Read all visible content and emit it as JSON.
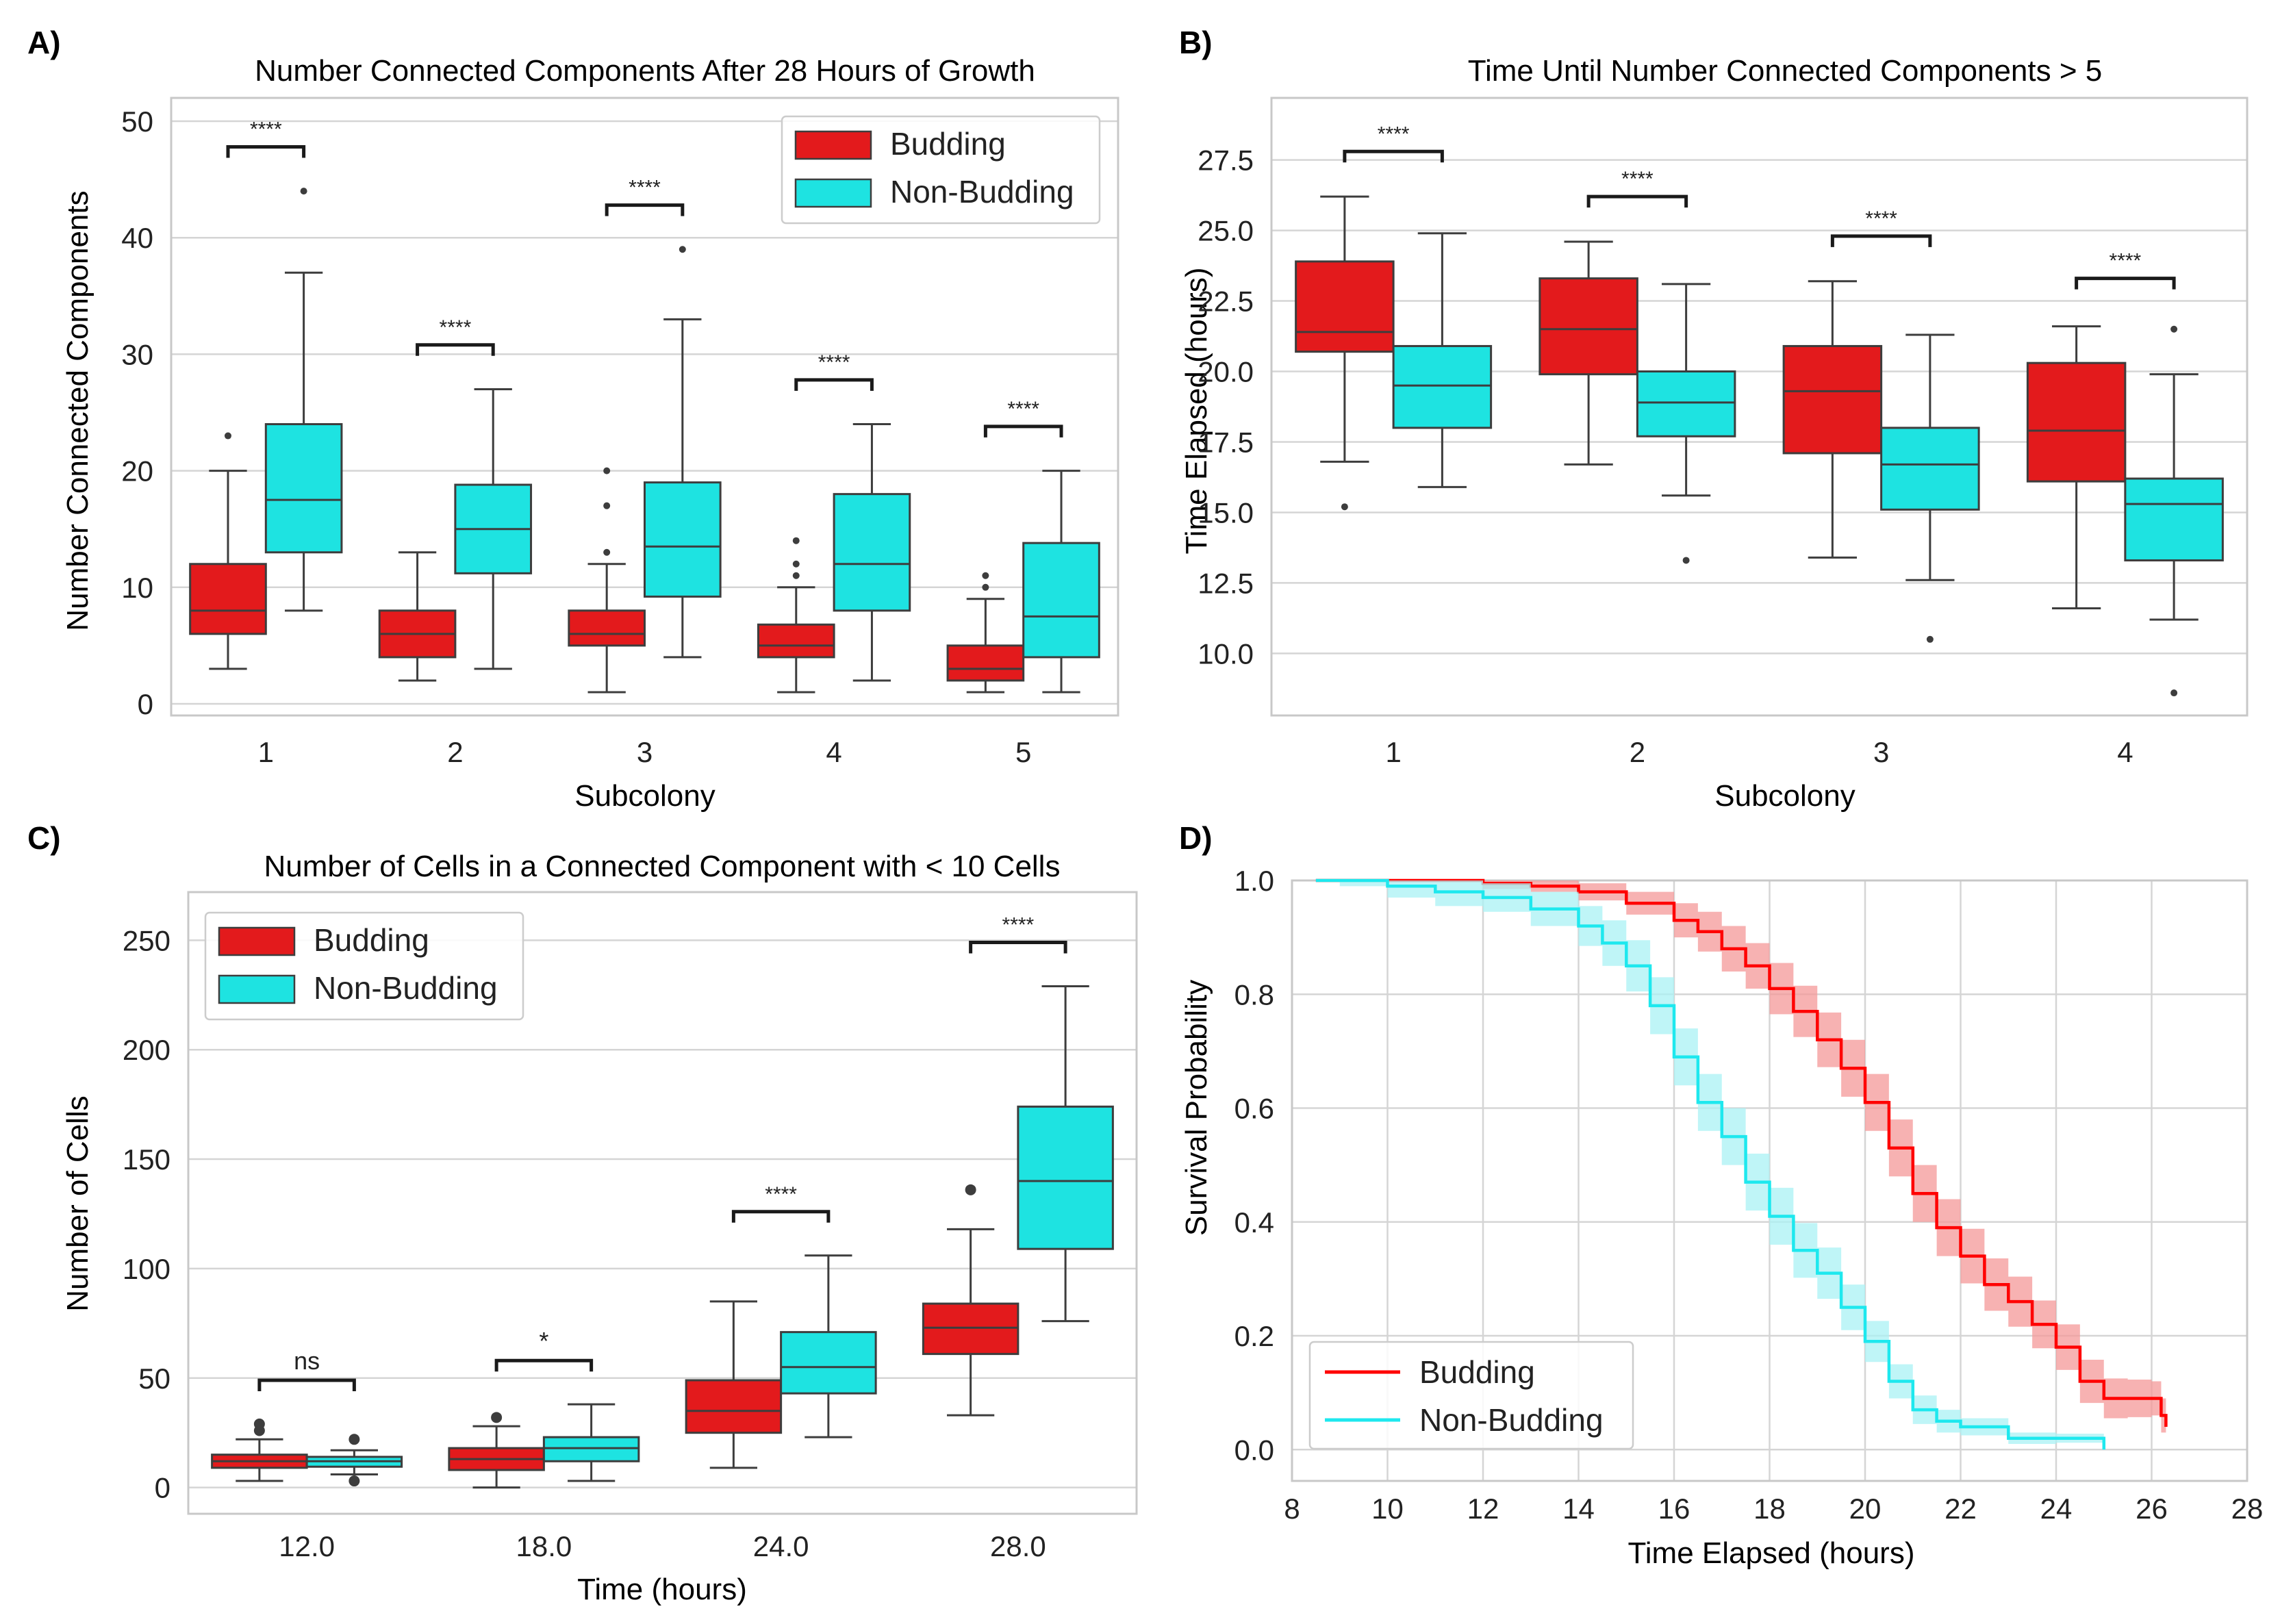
{
  "chart_data": [
    {
      "panel": "A)",
      "type": "boxplot",
      "title": "Number Connected Components After 28 Hours of Growth",
      "xlabel": "Subcolony",
      "ylabel": "Number Connected Components",
      "categories": [
        "1",
        "2",
        "3",
        "4",
        "5"
      ],
      "ylim": [
        -1,
        52
      ],
      "yticks": [
        0,
        10,
        20,
        30,
        40,
        50
      ],
      "legend": "top-right",
      "series": [
        {
          "name": "Budding",
          "color": "#e31a1c",
          "boxes": [
            {
              "whislo": 3,
              "q1": 6,
              "med": 8,
              "q3": 12,
              "whishi": 20,
              "fliers": [
                23
              ]
            },
            {
              "whislo": 2,
              "q1": 4,
              "med": 6,
              "q3": 8,
              "whishi": 13,
              "fliers": []
            },
            {
              "whislo": 1,
              "q1": 5,
              "med": 6,
              "q3": 8,
              "whishi": 12,
              "fliers": [
                13,
                17,
                20
              ]
            },
            {
              "whislo": 1,
              "q1": 4,
              "med": 5,
              "q3": 6.8,
              "whishi": 10,
              "fliers": [
                11,
                12,
                14
              ]
            },
            {
              "whislo": 1,
              "q1": 2,
              "med": 3,
              "q3": 5,
              "whishi": 9,
              "fliers": [
                10,
                11
              ]
            }
          ]
        },
        {
          "name": "Non-Budding",
          "color": "#1ee3e1",
          "boxes": [
            {
              "whislo": 8,
              "q1": 13,
              "med": 17.5,
              "q3": 24,
              "whishi": 37,
              "fliers": [
                44
              ]
            },
            {
              "whislo": 3,
              "q1": 11.2,
              "med": 15,
              "q3": 18.8,
              "whishi": 27,
              "fliers": []
            },
            {
              "whislo": 4,
              "q1": 9.2,
              "med": 13.5,
              "q3": 19,
              "whishi": 33,
              "fliers": [
                39
              ]
            },
            {
              "whislo": 2,
              "q1": 8,
              "med": 12,
              "q3": 18,
              "whishi": 24,
              "fliers": []
            },
            {
              "whislo": 1,
              "q1": 4,
              "med": 7.5,
              "q3": 13.8,
              "whishi": 20,
              "fliers": []
            }
          ]
        }
      ],
      "annotations": [
        {
          "category": "1",
          "text": "****",
          "y": 47.8
        },
        {
          "category": "2",
          "text": "****",
          "y": 30.8
        },
        {
          "category": "3",
          "text": "****",
          "y": 42.8
        },
        {
          "category": "4",
          "text": "****",
          "y": 27.8
        },
        {
          "category": "5",
          "text": "****",
          "y": 23.8
        }
      ]
    },
    {
      "panel": "B)",
      "type": "boxplot",
      "title": "Time Until Number Connected Components > 5",
      "xlabel": "Subcolony",
      "ylabel": "Time Elapsed (hours)",
      "categories": [
        "1",
        "2",
        "3",
        "4"
      ],
      "ylim": [
        7.8,
        29.7
      ],
      "yticks": [
        10.0,
        12.5,
        15.0,
        17.5,
        20.0,
        22.5,
        25.0,
        27.5
      ],
      "ytick_labels": [
        "10.0",
        "12.5",
        "15.0",
        "17.5",
        "20.0",
        "22.5",
        "25.0",
        "27.5"
      ],
      "series": [
        {
          "name": "Budding",
          "color": "#e31a1c",
          "boxes": [
            {
              "whislo": 16.8,
              "q1": 20.7,
              "med": 21.4,
              "q3": 23.9,
              "whishi": 26.2,
              "fliers": [
                15.2
              ]
            },
            {
              "whislo": 16.7,
              "q1": 19.9,
              "med": 21.5,
              "q3": 23.3,
              "whishi": 24.6,
              "fliers": []
            },
            {
              "whislo": 13.4,
              "q1": 17.1,
              "med": 19.3,
              "q3": 20.9,
              "whishi": 23.2,
              "fliers": []
            },
            {
              "whislo": 11.6,
              "q1": 16.1,
              "med": 17.9,
              "q3": 20.3,
              "whishi": 21.6,
              "fliers": []
            }
          ]
        },
        {
          "name": "Non-Budding",
          "color": "#1ee3e1",
          "boxes": [
            {
              "whislo": 15.9,
              "q1": 18.0,
              "med": 19.5,
              "q3": 20.9,
              "whishi": 24.9,
              "fliers": []
            },
            {
              "whislo": 15.6,
              "q1": 17.7,
              "med": 18.9,
              "q3": 20.0,
              "whishi": 23.1,
              "fliers": [
                13.3
              ]
            },
            {
              "whislo": 12.6,
              "q1": 15.1,
              "med": 16.7,
              "q3": 18.0,
              "whishi": 21.3,
              "fliers": [
                10.5
              ]
            },
            {
              "whislo": 11.2,
              "q1": 13.3,
              "med": 15.3,
              "q3": 16.2,
              "whishi": 19.9,
              "fliers": [
                21.5,
                8.6
              ]
            }
          ]
        }
      ],
      "annotations": [
        {
          "category": "1",
          "text": "****",
          "y": 27.8
        },
        {
          "category": "2",
          "text": "****",
          "y": 26.2
        },
        {
          "category": "3",
          "text": "****",
          "y": 24.8
        },
        {
          "category": "4",
          "text": "****",
          "y": 23.3
        }
      ]
    },
    {
      "panel": "C)",
      "type": "boxplot",
      "title": "Number of Cells in a Connected Component with < 10 Cells",
      "xlabel": "Time (hours)",
      "ylabel": "Number of Cells",
      "categories": [
        "12.0",
        "18.0",
        "24.0",
        "28.0"
      ],
      "ylim": [
        -12,
        272
      ],
      "yticks": [
        0,
        50,
        100,
        150,
        200,
        250
      ],
      "legend": "top-left",
      "series": [
        {
          "name": "Budding",
          "color": "#e31a1c",
          "boxes": [
            {
              "whislo": 3,
              "q1": 9,
              "med": 12,
              "q3": 15,
              "whishi": 22,
              "fliers": [
                26,
                29
              ]
            },
            {
              "whislo": 0,
              "q1": 8,
              "med": 13,
              "q3": 18,
              "whishi": 28,
              "fliers": [
                32
              ]
            },
            {
              "whislo": 9,
              "q1": 25,
              "med": 35,
              "q3": 49,
              "whishi": 85,
              "fliers": []
            },
            {
              "whislo": 33,
              "q1": 61,
              "med": 73,
              "q3": 84,
              "whishi": 118,
              "fliers": [
                136
              ]
            }
          ]
        },
        {
          "name": "Non-Budding",
          "color": "#1ee3e1",
          "boxes": [
            {
              "whislo": 6,
              "q1": 9.5,
              "med": 12,
              "q3": 14,
              "whishi": 17,
              "fliers": [
                3,
                22
              ]
            },
            {
              "whislo": 3,
              "q1": 12,
              "med": 18,
              "q3": 23,
              "whishi": 38,
              "fliers": []
            },
            {
              "whislo": 23,
              "q1": 43,
              "med": 55,
              "q3": 71,
              "whishi": 106,
              "fliers": []
            },
            {
              "whislo": 76,
              "q1": 109,
              "med": 140,
              "q3": 174,
              "whishi": 229,
              "fliers": []
            }
          ]
        }
      ],
      "annotations": [
        {
          "category": "12.0",
          "text": "ns",
          "y": 49
        },
        {
          "category": "18.0",
          "text": "*",
          "y": 58
        },
        {
          "category": "24.0",
          "text": "****",
          "y": 126
        },
        {
          "category": "28.0",
          "text": "****",
          "y": 249
        }
      ]
    },
    {
      "panel": "D)",
      "type": "line",
      "xlabel": "Time Elapsed (hours)",
      "ylabel": "Survival Probability",
      "xlim": [
        8,
        28
      ],
      "ylim": [
        -0.055,
        1.0
      ],
      "xticks": [
        8,
        10,
        12,
        14,
        16,
        18,
        20,
        22,
        24,
        26,
        28
      ],
      "yticks": [
        0.0,
        0.2,
        0.4,
        0.6,
        0.8,
        1.0
      ],
      "ytick_labels": [
        "0.0",
        "0.2",
        "0.4",
        "0.6",
        "0.8",
        "1.0"
      ],
      "legend": "bottom-left",
      "series": [
        {
          "name": "Budding",
          "color": "#ff0000",
          "band_color": "#f49898",
          "x": [
            8.5,
            11.5,
            12.0,
            13.0,
            14.0,
            15.0,
            16.0,
            16.5,
            17.0,
            17.5,
            18.0,
            18.5,
            19.0,
            19.5,
            20.0,
            20.5,
            21.0,
            21.5,
            22.0,
            22.5,
            23.0,
            23.5,
            24.0,
            24.5,
            25.0,
            25.5,
            26.0,
            26.2,
            26.3
          ],
          "y": [
            1.0,
            1.0,
            0.995,
            0.99,
            0.98,
            0.96,
            0.93,
            0.91,
            0.88,
            0.85,
            0.81,
            0.77,
            0.72,
            0.67,
            0.61,
            0.53,
            0.45,
            0.39,
            0.34,
            0.29,
            0.26,
            0.22,
            0.18,
            0.12,
            0.09,
            0.09,
            0.09,
            0.06,
            0.04
          ],
          "band": [
            0.0,
            0.0,
            0.01,
            0.01,
            0.015,
            0.02,
            0.03,
            0.035,
            0.04,
            0.04,
            0.045,
            0.045,
            0.048,
            0.05,
            0.05,
            0.05,
            0.05,
            0.05,
            0.048,
            0.046,
            0.044,
            0.042,
            0.04,
            0.038,
            0.035,
            0.033,
            0.03,
            0.03,
            0.03
          ]
        },
        {
          "name": "Non-Budding",
          "color": "#1ee8ee",
          "band_color": "#a9f1f4",
          "x": [
            8.5,
            9.0,
            10.0,
            11.0,
            12.0,
            13.0,
            14.0,
            14.5,
            15.0,
            15.5,
            16.0,
            16.5,
            17.0,
            17.5,
            18.0,
            18.5,
            19.0,
            19.5,
            20.0,
            20.5,
            21.0,
            21.5,
            22.0,
            23.0,
            24.0,
            25.0
          ],
          "y": [
            1.0,
            1.0,
            0.99,
            0.98,
            0.97,
            0.95,
            0.92,
            0.89,
            0.85,
            0.78,
            0.69,
            0.61,
            0.55,
            0.47,
            0.41,
            0.35,
            0.31,
            0.25,
            0.19,
            0.12,
            0.07,
            0.05,
            0.04,
            0.02,
            0.02,
            0.0
          ],
          "band": [
            0.0,
            0.01,
            0.02,
            0.025,
            0.025,
            0.03,
            0.035,
            0.04,
            0.045,
            0.05,
            0.05,
            0.05,
            0.05,
            0.05,
            0.05,
            0.048,
            0.045,
            0.04,
            0.036,
            0.03,
            0.025,
            0.02,
            0.015,
            0.01,
            0.008,
            0.005
          ]
        }
      ]
    }
  ]
}
